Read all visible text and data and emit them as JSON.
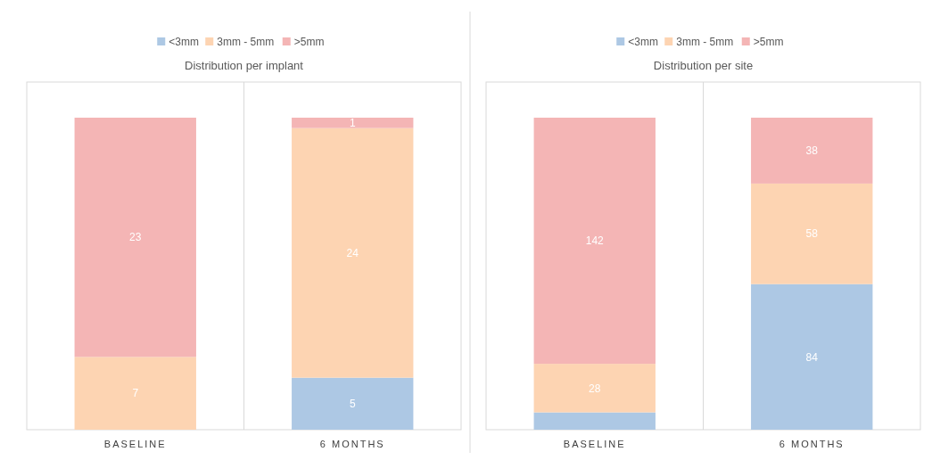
{
  "chart_data": [
    {
      "type": "bar",
      "title": "Distribution per implant",
      "categories": [
        "BASELINE",
        "6 MONTHS"
      ],
      "stacked": true,
      "legend": "top",
      "series": [
        {
          "name": "<3mm",
          "color": "#adc8e4",
          "values": [
            0,
            5
          ],
          "value_labels": [
            null,
            "5"
          ]
        },
        {
          "name": "3mm - 5mm",
          "color": "#fdd4b2",
          "values": [
            7,
            24
          ],
          "value_labels": [
            "7",
            "24"
          ]
        },
        {
          "name": ">5mm",
          "color": "#f4b5b5",
          "values": [
            23,
            1
          ],
          "value_labels": [
            "23",
            "1"
          ]
        }
      ]
    },
    {
      "type": "bar",
      "title": "Distribution per site",
      "categories": [
        "BASELINE",
        "6 MONTHS"
      ],
      "stacked": true,
      "legend": "top",
      "series": [
        {
          "name": "<3mm",
          "color": "#adc8e4",
          "values": [
            10,
            84
          ],
          "value_labels": [
            null,
            "84"
          ]
        },
        {
          "name": "3mm - 5mm",
          "color": "#fdd4b2",
          "values": [
            28,
            58
          ],
          "value_labels": [
            "28",
            "58"
          ]
        },
        {
          "name": ">5mm",
          "color": "#f4b5b5",
          "values": [
            142,
            38
          ],
          "value_labels": [
            "142",
            "38"
          ]
        }
      ]
    }
  ]
}
